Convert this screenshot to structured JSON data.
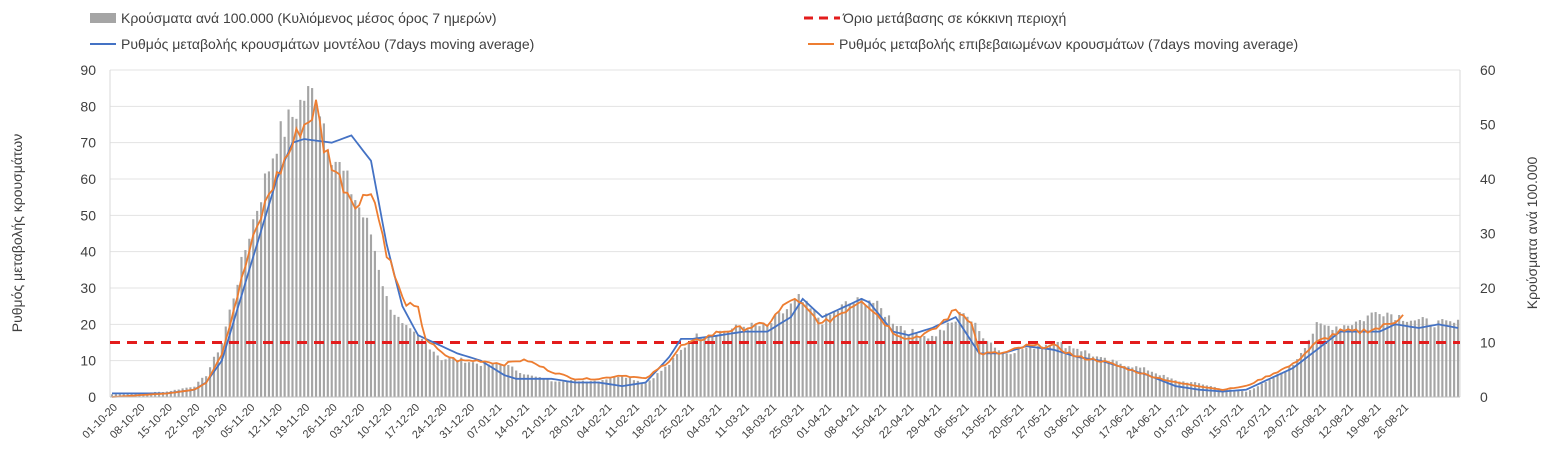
{
  "chart_data": {
    "type": "bar+line",
    "legend": {
      "bars_label": "Κρούσματα ανά 100.000 (Κυλιόμενος μέσος όρος 7 ημερών)",
      "threshold_label": "Όριο μετάβασης σε κόκκινη περιοχή",
      "model_label": "Ρυθμός μεταβολής κρουσμάτων μοντέλου (7days moving average)",
      "confirmed_label": "Ρυθμός μεταβολής επιβεβαιωμένων κρουσμάτων (7days moving average)"
    },
    "y_left": {
      "label": "Ρυθμός μεταβολής κρουσμάτων",
      "min": 0,
      "max": 90,
      "ticks": [
        "0",
        "10",
        "20",
        "30",
        "40",
        "50",
        "60",
        "70",
        "80",
        "90"
      ]
    },
    "y_right": {
      "label": "Κρούσματα ανά 100.000",
      "min": 0,
      "max": 60,
      "ticks": [
        "0",
        "10",
        "20",
        "30",
        "40",
        "50",
        "60"
      ]
    },
    "x_labels": [
      "01-10-20",
      "08-10-20",
      "15-10-20",
      "22-10-20",
      "29-10-20",
      "05-11-20",
      "12-11-20",
      "19-11-20",
      "26-11-20",
      "03-12-20",
      "10-12-20",
      "17-12-20",
      "24-12-20",
      "31-12-20",
      "07-01-21",
      "14-01-21",
      "21-01-21",
      "28-01-21",
      "04-02-21",
      "11-02-21",
      "18-02-21",
      "25-02-21",
      "04-03-21",
      "11-03-21",
      "18-03-21",
      "25-03-21",
      "01-04-21",
      "08-04-21",
      "15-04-21",
      "22-04-21",
      "29-04-21",
      "06-05-21",
      "13-05-21",
      "20-05-21",
      "27-05-21",
      "03-06-21",
      "10-06-21",
      "17-06-21",
      "24-06-21",
      "01-07-21",
      "08-07-21",
      "15-07-21",
      "22-07-21",
      "29-07-21",
      "05-08-21",
      "12-08-21",
      "19-08-21",
      "26-08-21"
    ],
    "threshold_value_left": 15,
    "bars_keypoints_right_axis": [
      [
        0,
        0.5
      ],
      [
        14,
        1
      ],
      [
        21,
        2
      ],
      [
        24,
        4
      ],
      [
        28,
        10
      ],
      [
        35,
        30
      ],
      [
        42,
        47
      ],
      [
        49,
        55
      ],
      [
        52,
        56
      ],
      [
        56,
        45
      ],
      [
        61,
        38
      ],
      [
        66,
        30
      ],
      [
        70,
        18
      ],
      [
        74,
        13
      ],
      [
        80,
        10
      ],
      [
        84,
        7
      ],
      [
        88,
        7
      ],
      [
        94,
        6
      ],
      [
        100,
        6
      ],
      [
        106,
        4
      ],
      [
        112,
        3
      ],
      [
        118,
        3
      ],
      [
        124,
        3
      ],
      [
        130,
        4
      ],
      [
        136,
        2.5
      ],
      [
        142,
        6
      ],
      [
        148,
        11
      ],
      [
        155,
        12
      ],
      [
        161,
        13
      ],
      [
        167,
        13
      ],
      [
        175,
        18
      ],
      [
        181,
        14
      ],
      [
        187,
        17
      ],
      [
        193,
        18
      ],
      [
        199,
        14
      ],
      [
        203,
        12
      ],
      [
        209,
        11
      ],
      [
        215,
        14
      ],
      [
        217,
        16
      ],
      [
        221,
        12
      ],
      [
        227,
        8
      ],
      [
        233,
        9
      ],
      [
        240,
        10
      ],
      [
        246,
        9
      ],
      [
        252,
        7
      ],
      [
        258,
        6
      ],
      [
        264,
        5
      ],
      [
        271,
        3
      ],
      [
        277,
        2.5
      ],
      [
        283,
        1.5
      ],
      [
        289,
        1
      ],
      [
        295,
        3
      ],
      [
        301,
        6
      ],
      [
        307,
        13
      ],
      [
        313,
        13
      ],
      [
        318,
        14
      ],
      [
        323,
        16
      ],
      [
        327,
        15
      ],
      [
        333,
        14
      ],
      [
        338,
        13.5
      ]
    ],
    "model_keypoints_left_axis": [
      [
        0,
        1
      ],
      [
        14,
        1
      ],
      [
        21,
        2
      ],
      [
        24,
        4
      ],
      [
        28,
        10
      ],
      [
        35,
        35
      ],
      [
        42,
        60
      ],
      [
        46,
        70
      ],
      [
        49,
        71
      ],
      [
        56,
        70
      ],
      [
        61,
        72
      ],
      [
        66,
        65
      ],
      [
        70,
        42
      ],
      [
        74,
        25
      ],
      [
        78,
        17
      ],
      [
        84,
        14
      ],
      [
        88,
        12
      ],
      [
        94,
        10
      ],
      [
        100,
        6
      ],
      [
        103,
        5
      ],
      [
        106,
        5
      ],
      [
        112,
        5
      ],
      [
        118,
        4
      ],
      [
        124,
        4
      ],
      [
        130,
        3
      ],
      [
        136,
        4
      ],
      [
        142,
        11
      ],
      [
        145,
        16
      ],
      [
        148,
        16
      ],
      [
        155,
        17
      ],
      [
        161,
        18
      ],
      [
        167,
        18
      ],
      [
        173,
        22
      ],
      [
        176,
        27
      ],
      [
        181,
        22
      ],
      [
        187,
        25
      ],
      [
        191,
        27
      ],
      [
        193,
        26
      ],
      [
        199,
        18
      ],
      [
        203,
        17
      ],
      [
        209,
        19
      ],
      [
        215,
        22
      ],
      [
        221,
        12
      ],
      [
        227,
        12
      ],
      [
        233,
        14
      ],
      [
        240,
        13
      ],
      [
        246,
        11
      ],
      [
        252,
        10
      ],
      [
        258,
        8
      ],
      [
        264,
        6
      ],
      [
        271,
        3
      ],
      [
        277,
        2
      ],
      [
        283,
        1.5
      ],
      [
        289,
        2
      ],
      [
        295,
        5
      ],
      [
        301,
        8
      ],
      [
        307,
        13
      ],
      [
        313,
        18
      ],
      [
        318,
        18
      ],
      [
        323,
        18
      ],
      [
        327,
        20
      ],
      [
        333,
        19
      ],
      [
        338,
        20
      ],
      [
        343,
        19
      ]
    ],
    "confirmed_keypoints_left_axis": [
      [
        0,
        0
      ],
      [
        14,
        1
      ],
      [
        21,
        2
      ],
      [
        24,
        4
      ],
      [
        28,
        12
      ],
      [
        35,
        40
      ],
      [
        40,
        56
      ],
      [
        44,
        65
      ],
      [
        48,
        74
      ],
      [
        50,
        76
      ],
      [
        52,
        80
      ],
      [
        54,
        69
      ],
      [
        58,
        60
      ],
      [
        61,
        55
      ],
      [
        63,
        53
      ],
      [
        66,
        58
      ],
      [
        70,
        40
      ],
      [
        74,
        27
      ],
      [
        76,
        25
      ],
      [
        78,
        24
      ],
      [
        80,
        16
      ],
      [
        84,
        12
      ],
      [
        88,
        10
      ],
      [
        94,
        10
      ],
      [
        100,
        9
      ],
      [
        103,
        10
      ],
      [
        106,
        10
      ],
      [
        112,
        7
      ],
      [
        118,
        5
      ],
      [
        124,
        5
      ],
      [
        130,
        6
      ],
      [
        136,
        5
      ],
      [
        142,
        10
      ],
      [
        145,
        14
      ],
      [
        148,
        15
      ],
      [
        155,
        18
      ],
      [
        161,
        19
      ],
      [
        167,
        20
      ],
      [
        173,
        27
      ],
      [
        176,
        25
      ],
      [
        181,
        20
      ],
      [
        187,
        24
      ],
      [
        191,
        27
      ],
      [
        193,
        25
      ],
      [
        199,
        18
      ],
      [
        203,
        16
      ],
      [
        209,
        18
      ],
      [
        215,
        24
      ],
      [
        219,
        21
      ],
      [
        221,
        12
      ],
      [
        227,
        12
      ],
      [
        233,
        14
      ],
      [
        240,
        14
      ],
      [
        246,
        11
      ],
      [
        252,
        10
      ],
      [
        258,
        8
      ],
      [
        264,
        6
      ],
      [
        271,
        4
      ],
      [
        277,
        3
      ],
      [
        283,
        2
      ],
      [
        289,
        3
      ],
      [
        295,
        6
      ],
      [
        301,
        9
      ],
      [
        307,
        15
      ],
      [
        313,
        18
      ],
      [
        318,
        18
      ],
      [
        323,
        19
      ],
      [
        327,
        21
      ],
      [
        329,
        23
      ]
    ]
  }
}
